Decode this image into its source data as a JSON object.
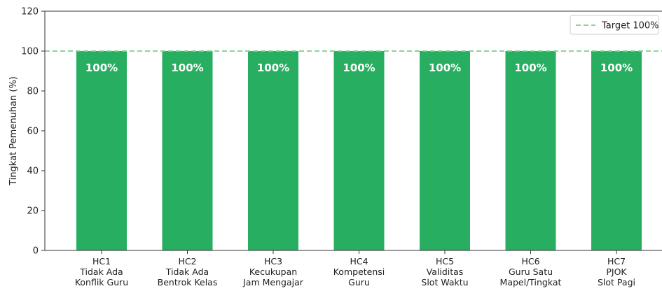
{
  "chart_data": {
    "type": "bar",
    "title": "",
    "xlabel": "",
    "ylabel": "Tingkat Pemenuhan (%)",
    "ylim": [
      0,
      120
    ],
    "yticks": [
      0,
      20,
      40,
      60,
      80,
      100,
      120
    ],
    "categories": [
      [
        "HC1",
        "Tidak Ada",
        "Konflik Guru"
      ],
      [
        "HC2",
        "Tidak Ada",
        "Bentrok Kelas"
      ],
      [
        "HC3",
        "Kecukupan",
        "Jam Mengajar"
      ],
      [
        "HC4",
        "Kompetensi",
        "Guru"
      ],
      [
        "HC5",
        "Validitas",
        "Slot Waktu"
      ],
      [
        "HC6",
        "Guru Satu",
        "Mapel/Tingkat"
      ],
      [
        "HC7",
        "PJOK",
        "Slot Pagi"
      ]
    ],
    "values": [
      100,
      100,
      100,
      100,
      100,
      100,
      100
    ],
    "data_labels": [
      "100%",
      "100%",
      "100%",
      "100%",
      "100%",
      "100%",
      "100%"
    ],
    "bar_color": "#27ae60",
    "reference_line": {
      "value": 100,
      "label": "Target 100%",
      "style": "dashed",
      "color": "#7ccf8c"
    },
    "grid": false,
    "legend": {
      "position": "top-right"
    }
  }
}
